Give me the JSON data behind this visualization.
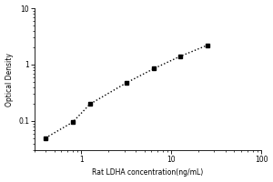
{
  "x_data": [
    0.4,
    0.8,
    1.25,
    3.2,
    6.4,
    12.5,
    25
  ],
  "y_data": [
    0.05,
    0.095,
    0.2,
    0.48,
    0.85,
    1.4,
    2.2
  ],
  "xlabel": "Rat LDHA concentration(ng/mL)",
  "ylabel": "Optical Density",
  "xlim": [
    0.3,
    100
  ],
  "ylim": [
    0.03,
    10
  ],
  "marker": "s",
  "marker_color": "black",
  "marker_size": 3.5,
  "line_style": ":",
  "line_color": "black",
  "line_width": 1.0,
  "xticks": [
    1,
    10,
    100
  ],
  "yticks": [
    0.1,
    1,
    10
  ],
  "ytick_labels": [
    "0.1",
    "1",
    "10"
  ],
  "xtick_labels": [
    "1",
    "10",
    "100"
  ],
  "background_color": "#ffffff",
  "label_fontsize": 5.5,
  "tick_fontsize": 5.5
}
